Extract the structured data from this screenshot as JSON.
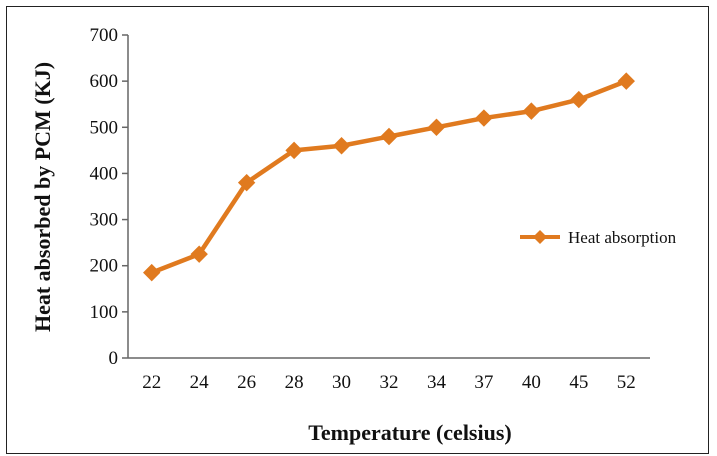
{
  "chart_data": {
    "type": "line",
    "title": "",
    "xlabel": "Temperature (celsius)",
    "ylabel": "Heat absorbed by PCM (KJ)",
    "categories": [
      "22",
      "24",
      "26",
      "28",
      "30",
      "32",
      "34",
      "37",
      "40",
      "45",
      "52"
    ],
    "series": [
      {
        "name": "Heat absorption",
        "color": "#E07A1F",
        "marker": "diamond",
        "values": [
          185,
          225,
          380,
          450,
          460,
          480,
          500,
          520,
          535,
          560,
          600
        ]
      }
    ],
    "ylim": [
      0,
      700
    ],
    "yticks": [
      "0",
      "100",
      "200",
      "300",
      "400",
      "500",
      "600",
      "700"
    ],
    "grid": false,
    "legend_position": "right"
  }
}
